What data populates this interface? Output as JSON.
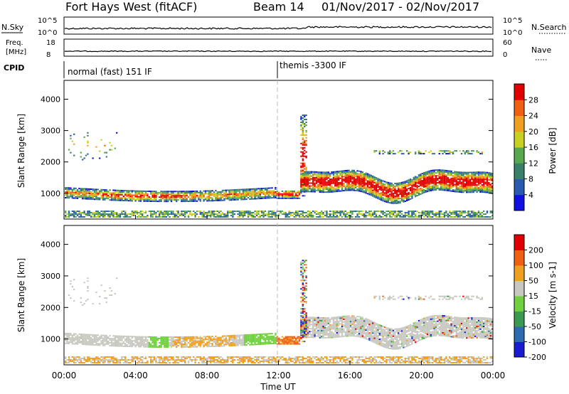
{
  "header": {
    "station": "Fort Hays West (fitACF)",
    "beam": "Beam 14",
    "date_range": "01/Nov/2017 - 02/Nov/2017"
  },
  "noise_panel": {
    "label": "N.Sky",
    "right_label": "N.Search",
    "left_ticks": [
      "10^5",
      "10^0"
    ],
    "right_ticks": [
      "10^5",
      "10^0"
    ]
  },
  "freq_panel": {
    "label_line1": "Freq.",
    "label_line2": "[MHz]",
    "right_label": "Nave",
    "left_ticks": [
      "18",
      "8"
    ],
    "right_ticks": [
      "60",
      "0"
    ]
  },
  "cpid_panel": {
    "label": "CPID",
    "modes": [
      "normal (fast) 151 IF",
      "themis -3300 IF"
    ]
  },
  "chart_data": [
    {
      "type": "heatmap",
      "name": "power",
      "ylabel": "Slant Range [km]",
      "ylim": [
        180,
        4600
      ],
      "yticks": [
        "1000",
        "2000",
        "3000",
        "4000"
      ],
      "colorbar_label": "Power [dB]",
      "colorbar_ticks": [
        "4",
        "8",
        "12",
        "16",
        "20",
        "24",
        "28"
      ],
      "colors": [
        "#1010e0",
        "#2a5ab0",
        "#3a7f6a",
        "#58a850",
        "#c8d020",
        "#f0a020",
        "#f06010",
        "#e00000"
      ]
    },
    {
      "type": "heatmap",
      "name": "velocity",
      "ylabel": "Slant Range [km]",
      "ylim": [
        180,
        4600
      ],
      "yticks": [
        "1000",
        "2000",
        "3000",
        "4000"
      ],
      "colorbar_label": "Velocity [m s-1]",
      "colorbar_ticks": [
        "200",
        "100",
        "50",
        "15",
        "-15",
        "-50",
        "-100",
        "-200"
      ],
      "colors": [
        "#1a1ad0",
        "#2e6ab0",
        "#3a9a50",
        "#70d040",
        "#c8c8c0",
        "#f0a020",
        "#f06010",
        "#e00000"
      ]
    }
  ],
  "x_axis": {
    "label": "Time UT",
    "ticks": [
      "00:00",
      "04:00",
      "08:00",
      "12:00",
      "16:00",
      "20:00",
      "00:00"
    ]
  }
}
